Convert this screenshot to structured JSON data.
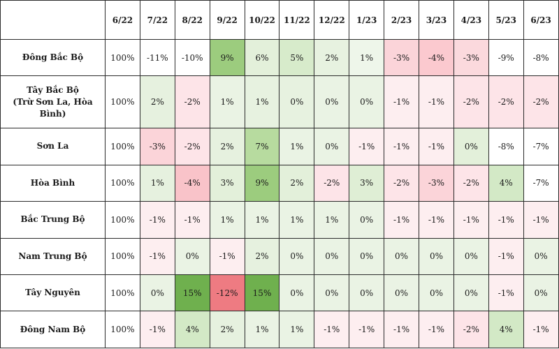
{
  "chart_data": {
    "type": "heatmap",
    "columns": [
      "6/22",
      "7/22",
      "8/22",
      "9/22",
      "10/22",
      "11/22",
      "12/22",
      "1/23",
      "2/23",
      "3/23",
      "4/23",
      "5/23",
      "6/23"
    ],
    "rows": [
      {
        "label": [
          "Đông Bắc Bộ"
        ],
        "values": [
          "100%",
          "-11%",
          "-10%",
          "9%",
          "6%",
          "5%",
          "2%",
          "1%",
          "-3%",
          "-4%",
          "-3%",
          "-9%",
          "-8%"
        ]
      },
      {
        "label": [
          "Tây Bắc Bộ",
          "(Trừ Sơn La, Hòa Bình)"
        ],
        "values": [
          "100%",
          "2%",
          "-2%",
          "1%",
          "1%",
          "0%",
          "0%",
          "0%",
          "-1%",
          "-1%",
          "-2%",
          "-2%",
          "-2%"
        ]
      },
      {
        "label": [
          "Sơn La"
        ],
        "values": [
          "100%",
          "-3%",
          "-2%",
          "2%",
          "7%",
          "1%",
          "0%",
          "-1%",
          "-1%",
          "-1%",
          "0%",
          "-8%",
          "-7%"
        ]
      },
      {
        "label": [
          "Hòa Bình"
        ],
        "values": [
          "100%",
          "1%",
          "-4%",
          "3%",
          "9%",
          "2%",
          "-2%",
          "3%",
          "-2%",
          "-3%",
          "-2%",
          "4%",
          "-7%"
        ]
      },
      {
        "label": [
          "Bắc Trung Bộ"
        ],
        "values": [
          "100%",
          "-1%",
          "-1%",
          "1%",
          "1%",
          "1%",
          "1%",
          "0%",
          "-1%",
          "-1%",
          "-1%",
          "-1%",
          "-1%"
        ]
      },
      {
        "label": [
          "Nam Trung Bộ"
        ],
        "values": [
          "100%",
          "-1%",
          "0%",
          "-1%",
          "2%",
          "0%",
          "0%",
          "0%",
          "0%",
          "0%",
          "0%",
          "-1%",
          "0%"
        ]
      },
      {
        "label": [
          "Tây Nguyên"
        ],
        "values": [
          "100%",
          "0%",
          "15%",
          "-12%",
          "15%",
          "0%",
          "0%",
          "0%",
          "0%",
          "0%",
          "0%",
          "-1%",
          "0%"
        ]
      },
      {
        "label": [
          "Đông Nam Bộ"
        ],
        "values": [
          "100%",
          "-1%",
          "4%",
          "2%",
          "1%",
          "1%",
          "-1%",
          "-1%",
          "-1%",
          "-1%",
          "-2%",
          "4%",
          "-1%"
        ]
      }
    ],
    "cell_colors": [
      [
        "#ffffff",
        "#ffffff",
        "#ffffff",
        "#9ccc7e",
        "#e3f0da",
        "#d7ebcb",
        "#e7f2e0",
        "#eef6ea",
        "#fbd4d9",
        "#fbc9cf",
        "#fbd9dd",
        "#ffffff",
        "#ffffff"
      ],
      [
        "#ffffff",
        "#e6f1df",
        "#fde4e8",
        "#eaf3e4",
        "#e7f2e0",
        "#e7f2e0",
        "#eaf3e4",
        "#eaf3e4",
        "#fdeef0",
        "#fdeef0",
        "#fde4e8",
        "#fde4e8",
        "#fde4e8"
      ],
      [
        "#ffffff",
        "#fbd4d9",
        "#fde4e8",
        "#e6f1df",
        "#b7db9f",
        "#eaf3e4",
        "#eaf3e4",
        "#fdeef0",
        "#fdeef0",
        "#fdeef0",
        "#e3f0da",
        "#ffffff",
        "#ffffff"
      ],
      [
        "#ffffff",
        "#e6f1df",
        "#f9c3c9",
        "#e3f0da",
        "#9ccc7e",
        "#e3f0da",
        "#fde4e8",
        "#dfeed5",
        "#fde4e8",
        "#fbd4d9",
        "#fde4e8",
        "#d3e9c6",
        "#ffffff"
      ],
      [
        "#ffffff",
        "#fdeef0",
        "#fdeef0",
        "#eaf3e4",
        "#eaf3e4",
        "#eaf3e4",
        "#eaf3e4",
        "#eaf3e4",
        "#fdeef0",
        "#fdeef0",
        "#fdeef0",
        "#fdeef0",
        "#fdeef0"
      ],
      [
        "#ffffff",
        "#fdeef0",
        "#eaf3e4",
        "#fdeef0",
        "#e6f1df",
        "#eaf3e4",
        "#eaf3e4",
        "#eaf3e4",
        "#eaf3e4",
        "#eaf3e4",
        "#eaf3e4",
        "#fdeef0",
        "#eaf3e4"
      ],
      [
        "#ffffff",
        "#eaf3e4",
        "#6fb04e",
        "#ee7b82",
        "#6fb04e",
        "#eaf3e4",
        "#eaf3e4",
        "#eaf3e4",
        "#eaf3e4",
        "#eaf3e4",
        "#eaf3e4",
        "#fdeef0",
        "#eaf3e4"
      ],
      [
        "#ffffff",
        "#fdeef0",
        "#d3e9c6",
        "#e6f1df",
        "#eaf3e4",
        "#eaf3e4",
        "#fdeef0",
        "#fdeef0",
        "#fdeef0",
        "#fdeef0",
        "#fde4e8",
        "#d3e9c6",
        "#fdeef0"
      ]
    ]
  }
}
